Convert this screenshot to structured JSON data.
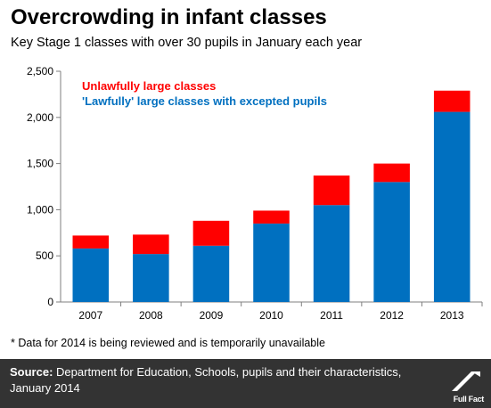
{
  "title": "Overcrowding in infant classes",
  "subtitle": "Key Stage 1 classes with over 30 pupils in January each year",
  "footnote": "* Data for 2014 is being reviewed and is temporarily unavailable",
  "source": {
    "label": "Source:",
    "text": "Department for Education, Schools, pupils and their characteristics, January 2014"
  },
  "logo": {
    "text": "Full Fact"
  },
  "colors": {
    "lawful": "#0070c0",
    "unlawful": "#ff0000",
    "axis": "#7f7f7f",
    "footer": "#333333"
  },
  "chart_data": {
    "type": "bar",
    "stacked": true,
    "categories": [
      "2007",
      "2008",
      "2009",
      "2010",
      "2011",
      "2012",
      "2013"
    ],
    "series": [
      {
        "name": "'Lawfully' large classes with excepted pupils",
        "color": "#0070c0",
        "values": [
          580,
          520,
          610,
          850,
          1050,
          1300,
          2060
        ]
      },
      {
        "name": "Unlawfully large classes",
        "color": "#ff0000",
        "values": [
          140,
          210,
          270,
          140,
          320,
          200,
          230
        ]
      }
    ],
    "ylim": [
      0,
      2500
    ],
    "yticks": [
      0,
      500,
      1000,
      1500,
      2000,
      2500
    ],
    "ytick_labels": [
      "0",
      "500",
      "1,000",
      "1,500",
      "2,000",
      "2,500"
    ],
    "grid": false,
    "legend": [
      {
        "text": "Unlawfully large classes",
        "color": "#ff0000"
      },
      {
        "text": "'Lawfully' large classes with excepted pupils",
        "color": "#0070c0"
      }
    ],
    "legend_position": "top-left"
  }
}
